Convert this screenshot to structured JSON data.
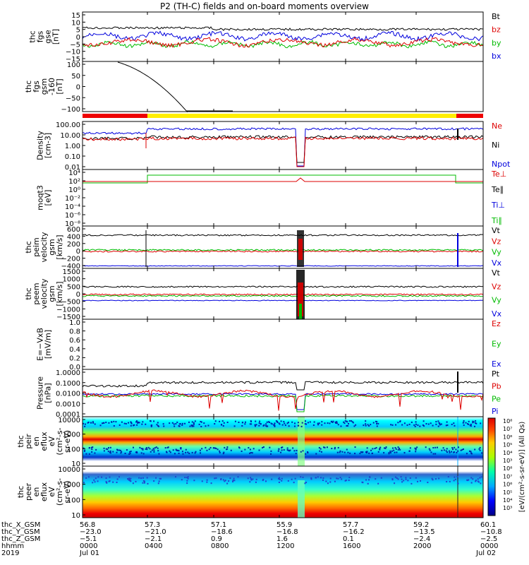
{
  "chart_data": {
    "type": "line",
    "title": "P2 (TH-C) fields and on-board moments overview",
    "time_ticks": [
      "0000",
      "0400",
      "0800",
      "1200",
      "1600",
      "2000",
      "0000"
    ],
    "date_labels": [
      "Jul 01",
      "Jul 02"
    ],
    "panels": [
      {
        "label_lines": [
          "thc",
          "fgs",
          "gse",
          "[nT]"
        ],
        "ticks": [
          "15",
          "10",
          "5",
          "0",
          "−5",
          "−10",
          "−15"
        ],
        "legend": [
          {
            "name": "Bt",
            "color": "#000000"
          },
          {
            "name": "bz",
            "color": "#dd0000"
          },
          {
            "name": "by",
            "color": "#00bb00"
          },
          {
            "name": "bx",
            "color": "#0000dd"
          }
        ]
      },
      {
        "label_lines": [
          "thc",
          "fgs",
          "gsm",
          "-160",
          "[nT]"
        ],
        "ticks": [
          "100",
          "50",
          "0",
          "−50",
          "−100"
        ]
      },
      {
        "label_lines": [
          "Density",
          "[cm-3]"
        ],
        "ticks": [
          "100.00",
          "10.00",
          "1.00",
          "0.10",
          "0.01"
        ],
        "legend": [
          {
            "name": "Ne",
            "color": "#dd0000"
          },
          {
            "name": "Ni",
            "color": "#000000"
          },
          {
            "name": "Npot",
            "color": "#0000dd"
          }
        ]
      },
      {
        "label_lines": [
          "moqt3",
          "[eV]"
        ],
        "ticks": [
          "10⁴",
          "10²",
          "10⁰",
          "10⁻²",
          "10⁻⁴",
          "10⁻⁶",
          "10⁻⁸"
        ],
        "legend": [
          {
            "name": "Te⊥",
            "color": "#dd0000"
          },
          {
            "name": "Te∥",
            "color": "#000000"
          },
          {
            "name": "Ti⊥",
            "color": "#0000dd"
          },
          {
            "name": "Ti∥",
            "color": "#00bb00"
          }
        ]
      },
      {
        "label_lines": [
          "thc",
          "peim",
          "velocity",
          "gsm",
          "[km/s]"
        ],
        "ticks": [
          "600",
          "400",
          "200",
          "0",
          "−200",
          "−400"
        ],
        "legend": [
          {
            "name": "Vt",
            "color": "#000000"
          },
          {
            "name": "Vz",
            "color": "#dd0000"
          },
          {
            "name": "Vy",
            "color": "#00bb00"
          },
          {
            "name": "Vx",
            "color": "#0000dd"
          }
        ]
      },
      {
        "label_lines": [
          "thc",
          "peem",
          "velocity",
          "gsm",
          "[km/s]"
        ],
        "ticks": [
          "1500",
          "1000",
          "500",
          "0",
          "−500",
          "−1000",
          "−1500"
        ],
        "legend": [
          {
            "name": "Vt",
            "color": "#000000"
          },
          {
            "name": "Vz",
            "color": "#dd0000"
          },
          {
            "name": "Vy",
            "color": "#00bb00"
          },
          {
            "name": "Vx",
            "color": "#0000dd"
          }
        ]
      },
      {
        "label_lines": [
          "E=−VxB",
          "[mV/m]"
        ],
        "ticks": [
          "1.0",
          "0.8",
          "0.6",
          "0.4",
          "0.2",
          "0.0"
        ],
        "legend": [
          {
            "name": "Ez",
            "color": "#dd0000"
          },
          {
            "name": "Ey",
            "color": "#00bb00"
          },
          {
            "name": "Ex",
            "color": "#0000dd"
          }
        ]
      },
      {
        "label_lines": [
          "Pressure",
          "[nPa]"
        ],
        "ticks": [
          "1.0000",
          "0.1000",
          "0.0100",
          "0.0010",
          "0.0001"
        ],
        "legend": [
          {
            "name": "Pt",
            "color": "#000000"
          },
          {
            "name": "Pb",
            "color": "#dd0000"
          },
          {
            "name": "Pe",
            "color": "#00bb00"
          },
          {
            "name": "Pi",
            "color": "#0000dd"
          }
        ]
      },
      {
        "label_lines": [
          "thc",
          "peir",
          "en",
          "eflux",
          "eV",
          "(cm²-s-",
          "sr-eV)"
        ],
        "ticks": [
          "10000",
          "1000",
          "100",
          "10"
        ]
      },
      {
        "label_lines": [
          "thc",
          "peer",
          "en",
          "eflux",
          "eV",
          "(cm²-s-",
          "sr-eV)"
        ],
        "ticks": [
          "10000",
          "1000",
          "100",
          "10"
        ]
      }
    ],
    "colorbar": {
      "ticks": [
        "10⁸",
        "10⁷",
        "10⁶",
        "10⁵",
        "10⁴",
        "10³",
        "10⁸",
        "10⁷",
        "10⁶",
        "10⁵",
        "10⁴",
        "10³"
      ],
      "label": "[eV/(cm²-s-sr-eV)] (All Qs)"
    },
    "ephemeris": {
      "labels": [
        "thc_X_GSM",
        "thc_Y_GSM",
        "thc_Z_GSM",
        "hhmm",
        "2019"
      ],
      "rows": [
        [
          "56.8",
          "57.3",
          "57.1",
          "55.9",
          "57.7",
          "59.2",
          "60.1"
        ],
        [
          "−23.0",
          "−21.0",
          "−18.6",
          "−16.8",
          "−16.2",
          "−13.5",
          "−10.8"
        ],
        [
          "−5.1",
          "−2.1",
          "0.9",
          "1.6",
          "0.1",
          "−2.4",
          "−2.5"
        ],
        [
          "0000",
          "0400",
          "0800",
          "1200",
          "1600",
          "2000",
          "0000"
        ]
      ]
    }
  }
}
